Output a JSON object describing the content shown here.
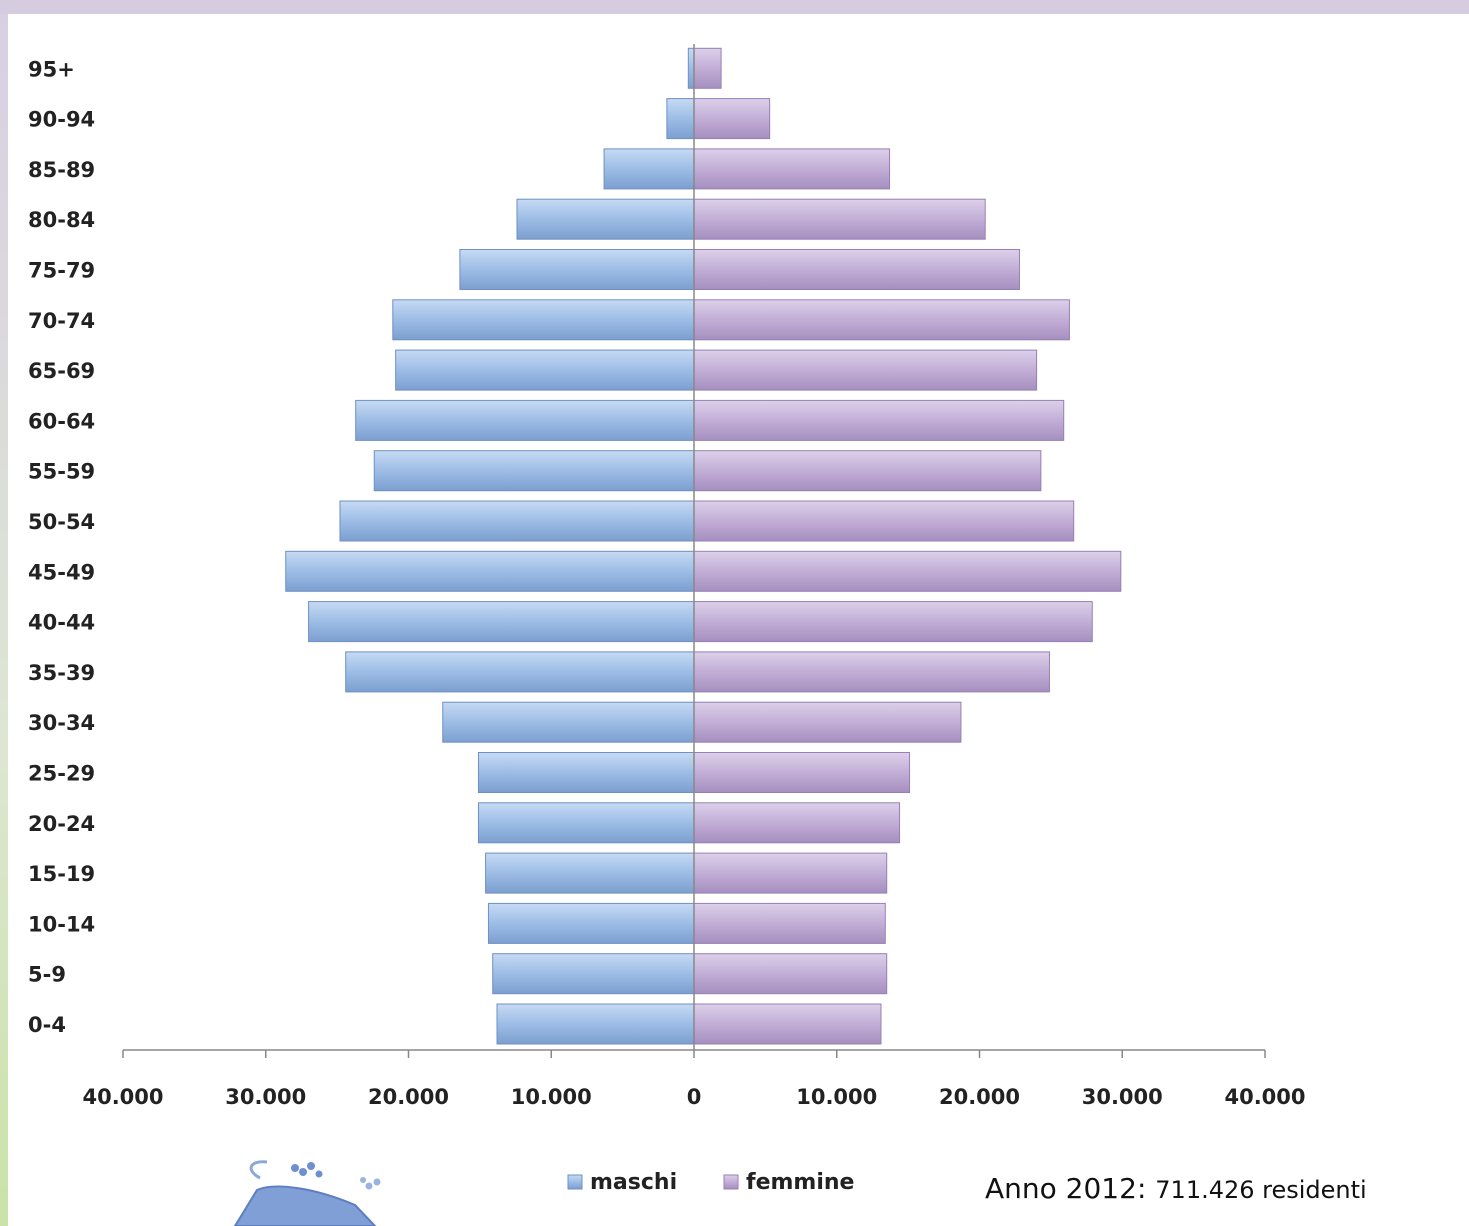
{
  "chart_data": {
    "type": "bar",
    "orientation": "horizontal-population-pyramid",
    "categories": [
      "0-4",
      "5-9",
      "10-14",
      "15-19",
      "20-24",
      "25-29",
      "30-34",
      "35-39",
      "40-44",
      "45-49",
      "50-54",
      "55-59",
      "60-64",
      "65-69",
      "70-74",
      "75-79",
      "80-84",
      "85-89",
      "90-94",
      "95+"
    ],
    "series": [
      {
        "name": "maschi",
        "color": "#9dbde6",
        "values": [
          13800,
          14100,
          14400,
          14600,
          15100,
          15100,
          17600,
          24400,
          27000,
          28600,
          24800,
          22400,
          23700,
          20900,
          21100,
          16400,
          12400,
          6300,
          1900,
          400
        ]
      },
      {
        "name": "femmine",
        "color": "#c2aed6",
        "values": [
          13100,
          13500,
          13400,
          13500,
          14400,
          15100,
          18700,
          24900,
          27900,
          29900,
          26600,
          24300,
          25900,
          24000,
          26300,
          22800,
          20400,
          13700,
          5300,
          1900
        ]
      }
    ],
    "xlim": [
      -40000,
      40000
    ],
    "tick_labels": [
      "40.000",
      "30.000",
      "20.000",
      "10.000",
      "0",
      "10.000",
      "20.000",
      "30.000",
      "40.000"
    ],
    "grid": false,
    "legend_position": "bottom"
  },
  "caption": {
    "year_part": "Anno 2012",
    "colon": ": ",
    "count_part": "711.426 residenti"
  },
  "logo_icon": "gecko-logo-icon"
}
